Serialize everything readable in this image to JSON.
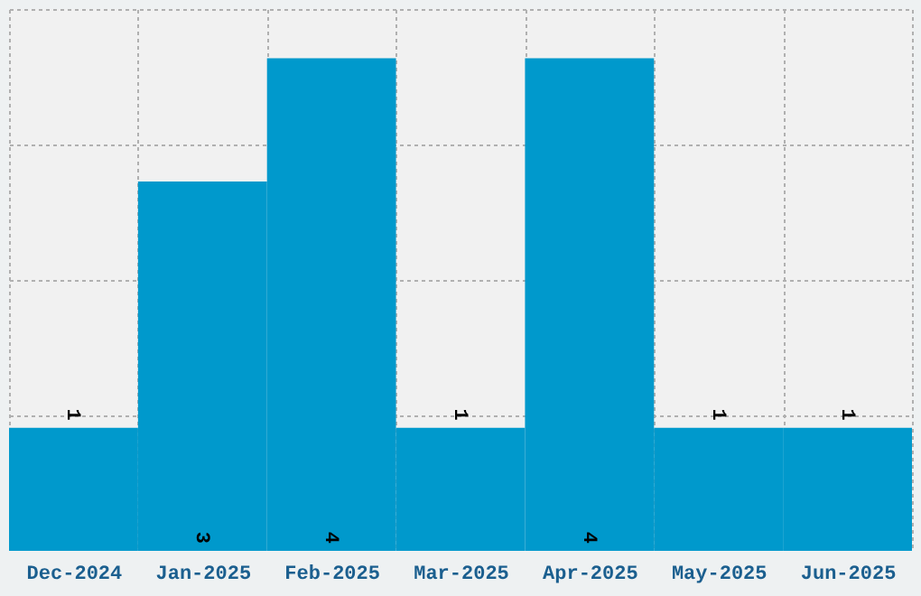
{
  "chart_data": {
    "type": "bar",
    "categories": [
      "Dec-2024",
      "Jan-2025",
      "Feb-2025",
      "Mar-2025",
      "Apr-2025",
      "May-2025",
      "Jun-2025"
    ],
    "values": [
      1,
      3,
      4,
      1,
      4,
      1,
      1
    ],
    "color": "#0099cc",
    "ylim": [
      0,
      4.4
    ],
    "yticks": [
      {
        "value": 1.1,
        "label": null
      },
      {
        "value": 2.2,
        "label": null
      },
      {
        "value": 3.3,
        "label": null
      },
      {
        "value": 4.4,
        "label": null
      }
    ],
    "tick_labels": "x",
    "grid": true,
    "data_labels": true
  }
}
